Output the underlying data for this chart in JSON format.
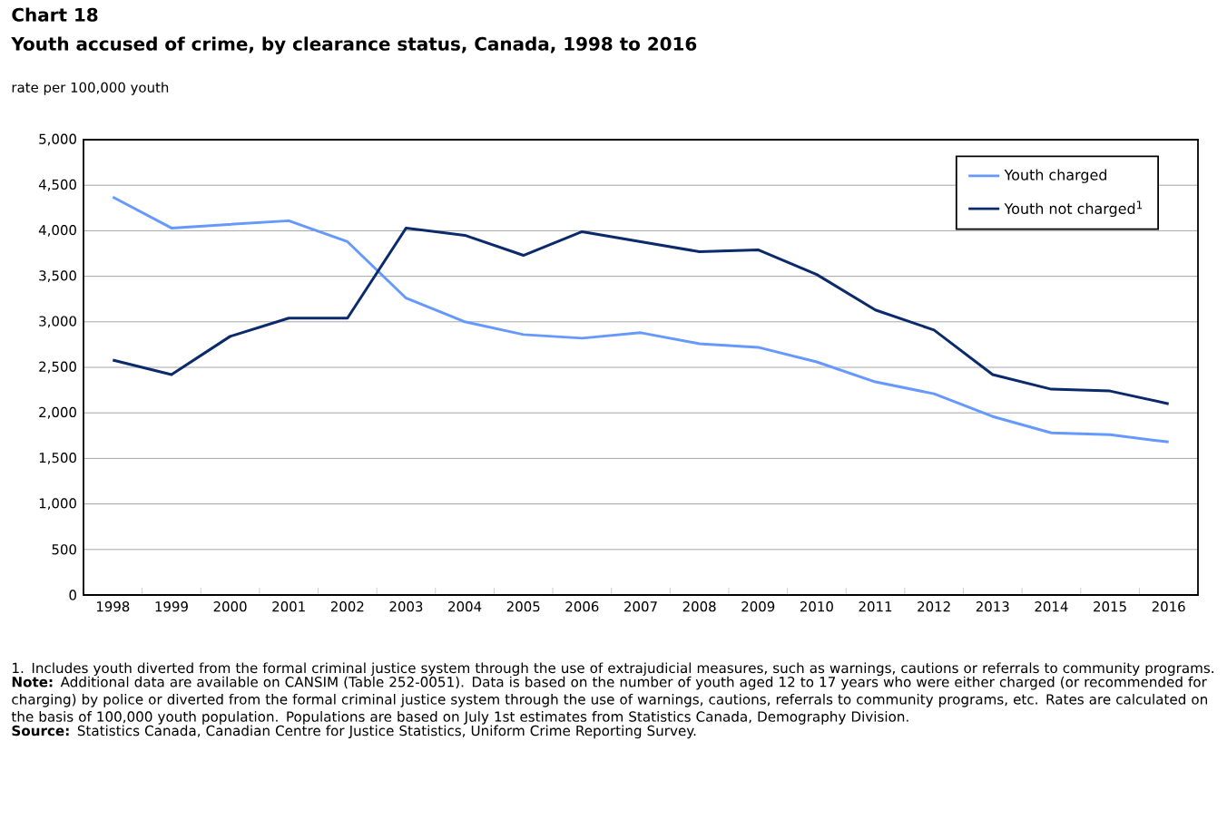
{
  "chart_data": {
    "type": "line",
    "title": "Chart 18",
    "subtitle": "Youth accused of crime, by clearance status, Canada, 1998 to 2016",
    "ylabel": "rate per 100,000 youth",
    "categories": [
      "1998",
      "1999",
      "2000",
      "2001",
      "2002",
      "2003",
      "2004",
      "2005",
      "2006",
      "2007",
      "2008",
      "2009",
      "2010",
      "2011",
      "2012",
      "2013",
      "2014",
      "2015",
      "2016"
    ],
    "series": [
      {
        "name": "Youth charged",
        "color": "#6699ff",
        "values": [
          4370,
          4030,
          4070,
          4110,
          3880,
          3260,
          3000,
          2860,
          2820,
          2880,
          2760,
          2720,
          2560,
          2340,
          2210,
          1960,
          1780,
          1760,
          1680
        ]
      },
      {
        "name": "Youth not charged$^{1}$",
        "color": "#0b2a6b",
        "values": [
          2580,
          2420,
          2840,
          3040,
          3040,
          4030,
          3950,
          3730,
          3990,
          3880,
          3770,
          3790,
          3520,
          3130,
          2910,
          2420,
          2260,
          2240,
          2100
        ]
      }
    ],
    "ylim": [
      0,
      5000
    ],
    "yticks": [
      {
        "value": 0,
        "label": "0"
      },
      {
        "value": 500,
        "label": "500"
      },
      {
        "value": 1000,
        "label": "1,000"
      },
      {
        "value": 1500,
        "label": "1,500"
      },
      {
        "value": 2000,
        "label": "2,000"
      },
      {
        "value": 2500,
        "label": "2,500"
      },
      {
        "value": 3000,
        "label": "3,000"
      },
      {
        "value": 3500,
        "label": "3,500"
      },
      {
        "value": 4000,
        "label": "4,000"
      },
      {
        "value": 4500,
        "label": "4,500"
      },
      {
        "value": 5000,
        "label": "5,000"
      }
    ],
    "grid": "y",
    "legend": "top right",
    "marker": "none",
    "line_style": "solid",
    "annotations": [
      "1. Includes youth diverted from the formal criminal justice system through the use of extrajudicial measures, such as warnings, cautions or referrals to community programs.",
      "**Note:** Additional data are available on CANSIM (Table 252-0051). Data is based on the number of youth aged 12 to 17 years who were either charged (or recommended for charging) by police or diverted from the formal criminal justice system through the use of warnings, cautions, referrals to community programs, etc. Rates are calculated on the basis of 100,000 youth population. Populations are based on July 1st estimates from Statistics Canada, Demography Division.",
      "**Source:** Statistics Canada, Canadian Centre for Justice Statistics, Uniform Crime Reporting Survey."
    ]
  }
}
